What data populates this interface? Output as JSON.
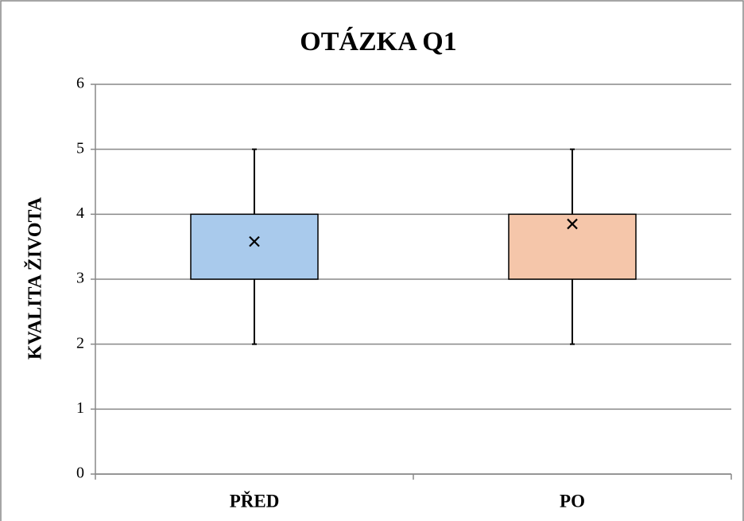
{
  "chart_data": {
    "type": "box",
    "title": "OTÁZKA Q1",
    "y_label": "KVALITA ŽIVOTA",
    "categories": [
      "PŘED",
      "PO"
    ],
    "boxes": [
      {
        "min": 2,
        "q1": 3,
        "q3": 4,
        "max": 5,
        "mean": 3.58,
        "color": "#a9caec"
      },
      {
        "min": 2,
        "q1": 3,
        "q3": 4,
        "max": 5,
        "mean": 3.85,
        "color": "#f5c6aa"
      }
    ],
    "ylim": [
      0,
      6
    ],
    "yticks": [
      0,
      1,
      2,
      3,
      4,
      5,
      6
    ],
    "grid": true
  }
}
